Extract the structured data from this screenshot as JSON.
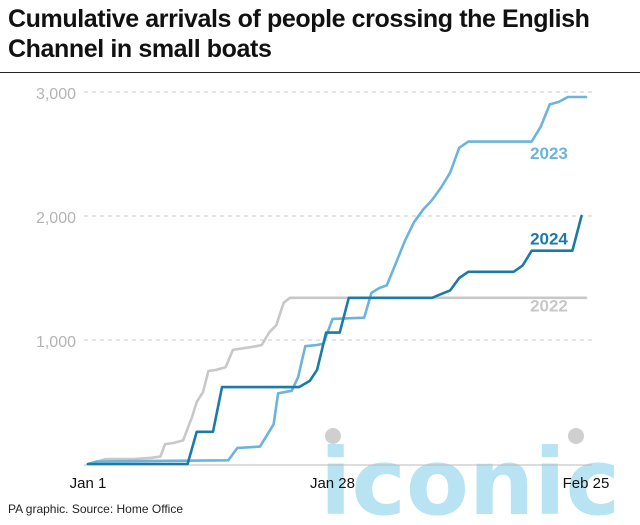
{
  "header": {
    "title": "Cumulative arrivals of people crossing the English Channel in small boats"
  },
  "footer": {
    "credit": "PA graphic.",
    "source": "Source:  Home Office"
  },
  "watermark": {
    "text": "iconic"
  },
  "colors": {
    "2022": "#c8c8c8",
    "2023": "#6bb5da",
    "2024": "#1c7ba6",
    "grid": "#c8c8c8",
    "watermark": "#9fd9ee"
  },
  "chart_data": {
    "type": "line",
    "xlabel": "",
    "ylabel": "",
    "x_unit": "day of year",
    "xlim": [
      1,
      56
    ],
    "ylim": [
      0,
      3000
    ],
    "x_ticks": [
      {
        "value": 1,
        "label": "Jan 1"
      },
      {
        "value": 28,
        "label": "Jan 28"
      },
      {
        "value": 56,
        "label": "Feb 25"
      }
    ],
    "y_ticks": [
      {
        "value": 1000,
        "label": "1,000"
      },
      {
        "value": 2000,
        "label": "2,000"
      },
      {
        "value": 3000,
        "label": "3,000"
      }
    ],
    "grid": true,
    "series": [
      {
        "name": "2022",
        "label_x": 54,
        "label_y": 1230,
        "points": [
          [
            1,
            0
          ],
          [
            2,
            20
          ],
          [
            3,
            40
          ],
          [
            6,
            40
          ],
          [
            8,
            50
          ],
          [
            9,
            60
          ],
          [
            9.5,
            160
          ],
          [
            10.5,
            170
          ],
          [
            11.5,
            190
          ],
          [
            12.5,
            380
          ],
          [
            13,
            500
          ],
          [
            13.7,
            580
          ],
          [
            14.3,
            750
          ],
          [
            15.2,
            760
          ],
          [
            16.2,
            780
          ],
          [
            17,
            920
          ],
          [
            19.6,
            950
          ],
          [
            20.2,
            960
          ],
          [
            21,
            1060
          ],
          [
            21.8,
            1120
          ],
          [
            22.6,
            1300
          ],
          [
            23.3,
            1340
          ],
          [
            56,
            1340
          ]
        ]
      },
      {
        "name": "2023",
        "label_x": 54,
        "label_y": 2460,
        "points": [
          [
            1,
            0
          ],
          [
            2,
            20
          ],
          [
            16.5,
            30
          ],
          [
            17.5,
            130
          ],
          [
            20,
            140
          ],
          [
            21.5,
            320
          ],
          [
            22,
            570
          ],
          [
            23.5,
            590
          ],
          [
            24.2,
            700
          ],
          [
            25,
            950
          ],
          [
            26.3,
            960
          ],
          [
            27,
            970
          ],
          [
            28,
            1170
          ],
          [
            31.5,
            1180
          ],
          [
            32.3,
            1380
          ],
          [
            33.2,
            1420
          ],
          [
            34,
            1440
          ],
          [
            35,
            1620
          ],
          [
            36,
            1800
          ],
          [
            37,
            1950
          ],
          [
            38,
            2050
          ],
          [
            39,
            2130
          ],
          [
            40,
            2230
          ],
          [
            41,
            2350
          ],
          [
            42,
            2550
          ],
          [
            43,
            2600
          ],
          [
            50,
            2600
          ],
          [
            51,
            2720
          ],
          [
            52,
            2900
          ],
          [
            53,
            2920
          ],
          [
            54,
            2960
          ],
          [
            56,
            2960
          ]
        ]
      },
      {
        "name": "2024",
        "label_x": 54,
        "label_y": 1770,
        "points": [
          [
            1,
            0
          ],
          [
            12,
            0
          ],
          [
            13,
            260
          ],
          [
            14.8,
            260
          ],
          [
            15.8,
            620
          ],
          [
            24.3,
            620
          ],
          [
            25.5,
            670
          ],
          [
            26.3,
            760
          ],
          [
            27.3,
            1060
          ],
          [
            28.8,
            1060
          ],
          [
            29.8,
            1340
          ],
          [
            39,
            1340
          ],
          [
            40,
            1370
          ],
          [
            41,
            1400
          ],
          [
            42,
            1500
          ],
          [
            43,
            1550
          ],
          [
            48,
            1550
          ],
          [
            49,
            1600
          ],
          [
            50,
            1720
          ],
          [
            54.5,
            1720
          ],
          [
            55.5,
            2000
          ]
        ]
      }
    ]
  }
}
